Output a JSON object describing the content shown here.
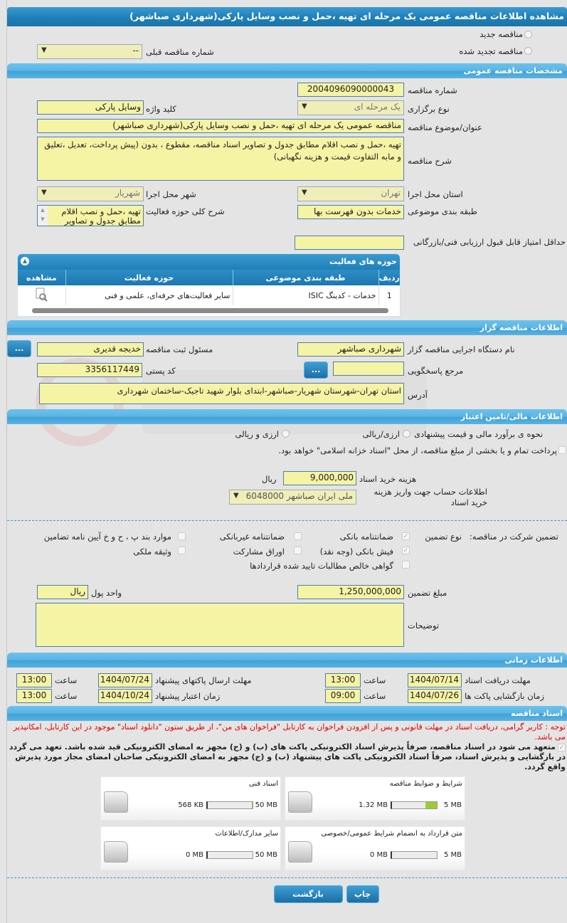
{
  "title": "مشاهده اطلاعات مناقصه عمومی یک مرحله ای تهیه ،حمل و نصب وسایل پارکی(شهرداری صباشهر)",
  "tender_status": {
    "new_label": "مناقصه جدید",
    "renewed_label": "مناقصه تجدید شده",
    "prev_number_label": "شماره مناقصه قبلی",
    "prev_number_value": "--"
  },
  "general": {
    "header": "مشخصات مناقصه عمومی",
    "number_label": "شماره مناقصه",
    "number": "2004096090000043",
    "type_label": "نوع برگزاری",
    "type": "یک مرحله ای",
    "keyword_label": "کلید واژه",
    "keyword": "وسایل پارکی",
    "subject_label": "عنوان/موضوع مناقصه",
    "subject": "مناقصه عمومی یک مرحله ای تهیه ،حمل و نصب وسایل پارکی(شهرداری صباشهر)",
    "description_label": "شرح مناقصه",
    "description": "تهیه ،حمل و نصب اقلام مطابق جدول و تصاویر اسناد مناقصه، مقطوع ، بدون (پیش پرداخت، تعدیل ،تعلیق و مابه التفاوت قیمت و هزینه نگهبانی)",
    "province_label": "استان محل اجرا",
    "province": "تهران",
    "city_label": "شهر محل اجرا",
    "city": "شهریار",
    "category_label": "طبقه بندی موضوعی",
    "category": "خدمات بدون فهرست بها",
    "activity_desc_label": "شرح کلی حوزه فعالیت",
    "activity_desc": "تهیه ،حمل و نصب اقلام مطابق جدول و تصاویر",
    "min_score_label": "حداقل امتیاز قابل قبول ارزیابی فنی/بازرگانی",
    "min_score": ""
  },
  "activities": {
    "header": "حوزه های فعالیت",
    "columns": [
      "ردیف",
      "طبقه بندی موضوعی",
      "حوزه فعالیت",
      "مشاهده"
    ],
    "rows": [
      {
        "index": "1",
        "category": "خدمات - کدینگ ISIC",
        "field": "سایر فعالیت‌های حرفه‌ای، علمی و فنی"
      }
    ]
  },
  "organizer": {
    "header": "اطلاعات مناقصه گزار",
    "org_label": "نام دستگاه اجرایی مناقصه گزار",
    "org": "شهرداری صباشهر",
    "responsible_label": "مسئول ثبت مناقصه",
    "responsible": "خدیجه قدیری",
    "reference_label": "مرجع پاسخگویی",
    "reference": "",
    "postal_label": "کد پستی",
    "postal": "3356117449",
    "address_label": "آدرس",
    "address": "استان تهران-شهرستان شهریار-صباشهر-ابتدای بلوار شهید تاجیک-ساختمان شهرداری",
    "more_button": "..."
  },
  "finance": {
    "header": "اطلاعات مالی/تامین اعتبار",
    "estimate_label": "نحوه ی برآورد مالی و قیمت پیشنهادی",
    "opt1": "ارزی/ریالی",
    "opt2": "ارزی و ریالی",
    "treasury_text": "پرداخت تمام و یا بخشی از مبلغ مناقصه، از محل \"اسناد خزانه اسلامی\" خواهد بود.",
    "doc_cost_label": "هزینه خرید اسناد",
    "doc_cost": "9,000,000",
    "doc_cost_unit": "ریال",
    "account_label": "اطلاعات حساب جهت واریز هزینه خرید اسناد",
    "account": "ملی ایران صباشهر 6048000"
  },
  "guarantee": {
    "label": "تضمین شرکت در مناقصه:",
    "type_label": "نوع تضمین",
    "options": [
      {
        "label": "ضمانتنامه بانکی",
        "checked": true
      },
      {
        "label": "ضمانتنامه غیربانکی",
        "checked": false
      },
      {
        "label": "موارد بند پ ، ح و خ آیین نامه تضامین",
        "checked": false
      },
      {
        "label": "فیش بانکی (وجه نقد)",
        "checked": true
      },
      {
        "label": "اوراق مشارکت",
        "checked": false
      },
      {
        "label": "وثیقه ملکی",
        "checked": false
      },
      {
        "label": "گواهی خالص مطالبات تایید شده قراردادها",
        "checked": false
      }
    ],
    "amount_label": "مبلغ تضمین",
    "amount": "1,250,000,000",
    "currency_label": "واحد پول",
    "currency": "ریال",
    "notes_label": "توضیحات",
    "notes": ""
  },
  "timing": {
    "header": "اطلاعات زمانی",
    "time_label": "ساعت",
    "doc_deadline_label": "مهلت دریافت اسناد",
    "doc_deadline_date": "1404/07/14",
    "doc_deadline_time": "13:00",
    "submit_deadline_label": "مهلت ارسال پاکتهای پیشنهاد",
    "submit_deadline_date": "1404/07/24",
    "submit_deadline_time": "13:00",
    "opening_label": "زمان بازگشایی پاکت ها",
    "opening_date": "1404/07/26",
    "opening_time": "09:00",
    "validity_label": "زمان اعتبار پیشنهاد",
    "validity_date": "1404/10/24",
    "validity_time": "13:00"
  },
  "documents": {
    "header": "اسناد مناقصه",
    "notice": "توجه : کاربر گرامی، دریافت اسناد در مهلت قانونی و پس از افزودن فراخوان به کارتابل \"فراخوان های من\"، از طریق ستون \"دانلود اسناد\" موجود در این کارتابل، امکانپذیر می باشد.",
    "commitment": "متعهد می شود در اسناد مناقصه، صرفاً پذیرش اسناد الکترونیکی پاکت های (ب) و (ج) مجهز به امضای الکترونیکی قید شده باشد. تعهد می گردد در بازگشایی و پذیرش اسناد، صرفاً اسناد الکترونیکی پاکت های پیشنهاد (ب) و (ج) مجهز به امضای الکترونیکی صاحبان امضای مجاز مورد پذیرش واقع گردد.",
    "files": [
      {
        "title": "شرایط و ضوابط مناقصه",
        "size": "1.32 MB",
        "max": "5 MB",
        "fill": 0.264
      },
      {
        "title": "اسناد فنی",
        "size": "568 KB",
        "max": "50 MB",
        "fill": 0.011
      },
      {
        "title": "متن قرارداد به انضمام شرایط عمومی/خصوصی",
        "size": "0 MB",
        "max": "5 MB",
        "fill": 0
      },
      {
        "title": "سایر مدارک/اطلاعات",
        "size": "0 MB",
        "max": "50 MB",
        "fill": 0
      }
    ]
  },
  "buttons": {
    "print": "چاپ",
    "back": "بازگشت"
  },
  "watermark": "AriaTender.neT",
  "colors": {
    "header_blue": "#1f7fb8",
    "input_yellow": "#f5f3a4",
    "notice_red": "#e00000",
    "progress_green": "#9acd32"
  }
}
